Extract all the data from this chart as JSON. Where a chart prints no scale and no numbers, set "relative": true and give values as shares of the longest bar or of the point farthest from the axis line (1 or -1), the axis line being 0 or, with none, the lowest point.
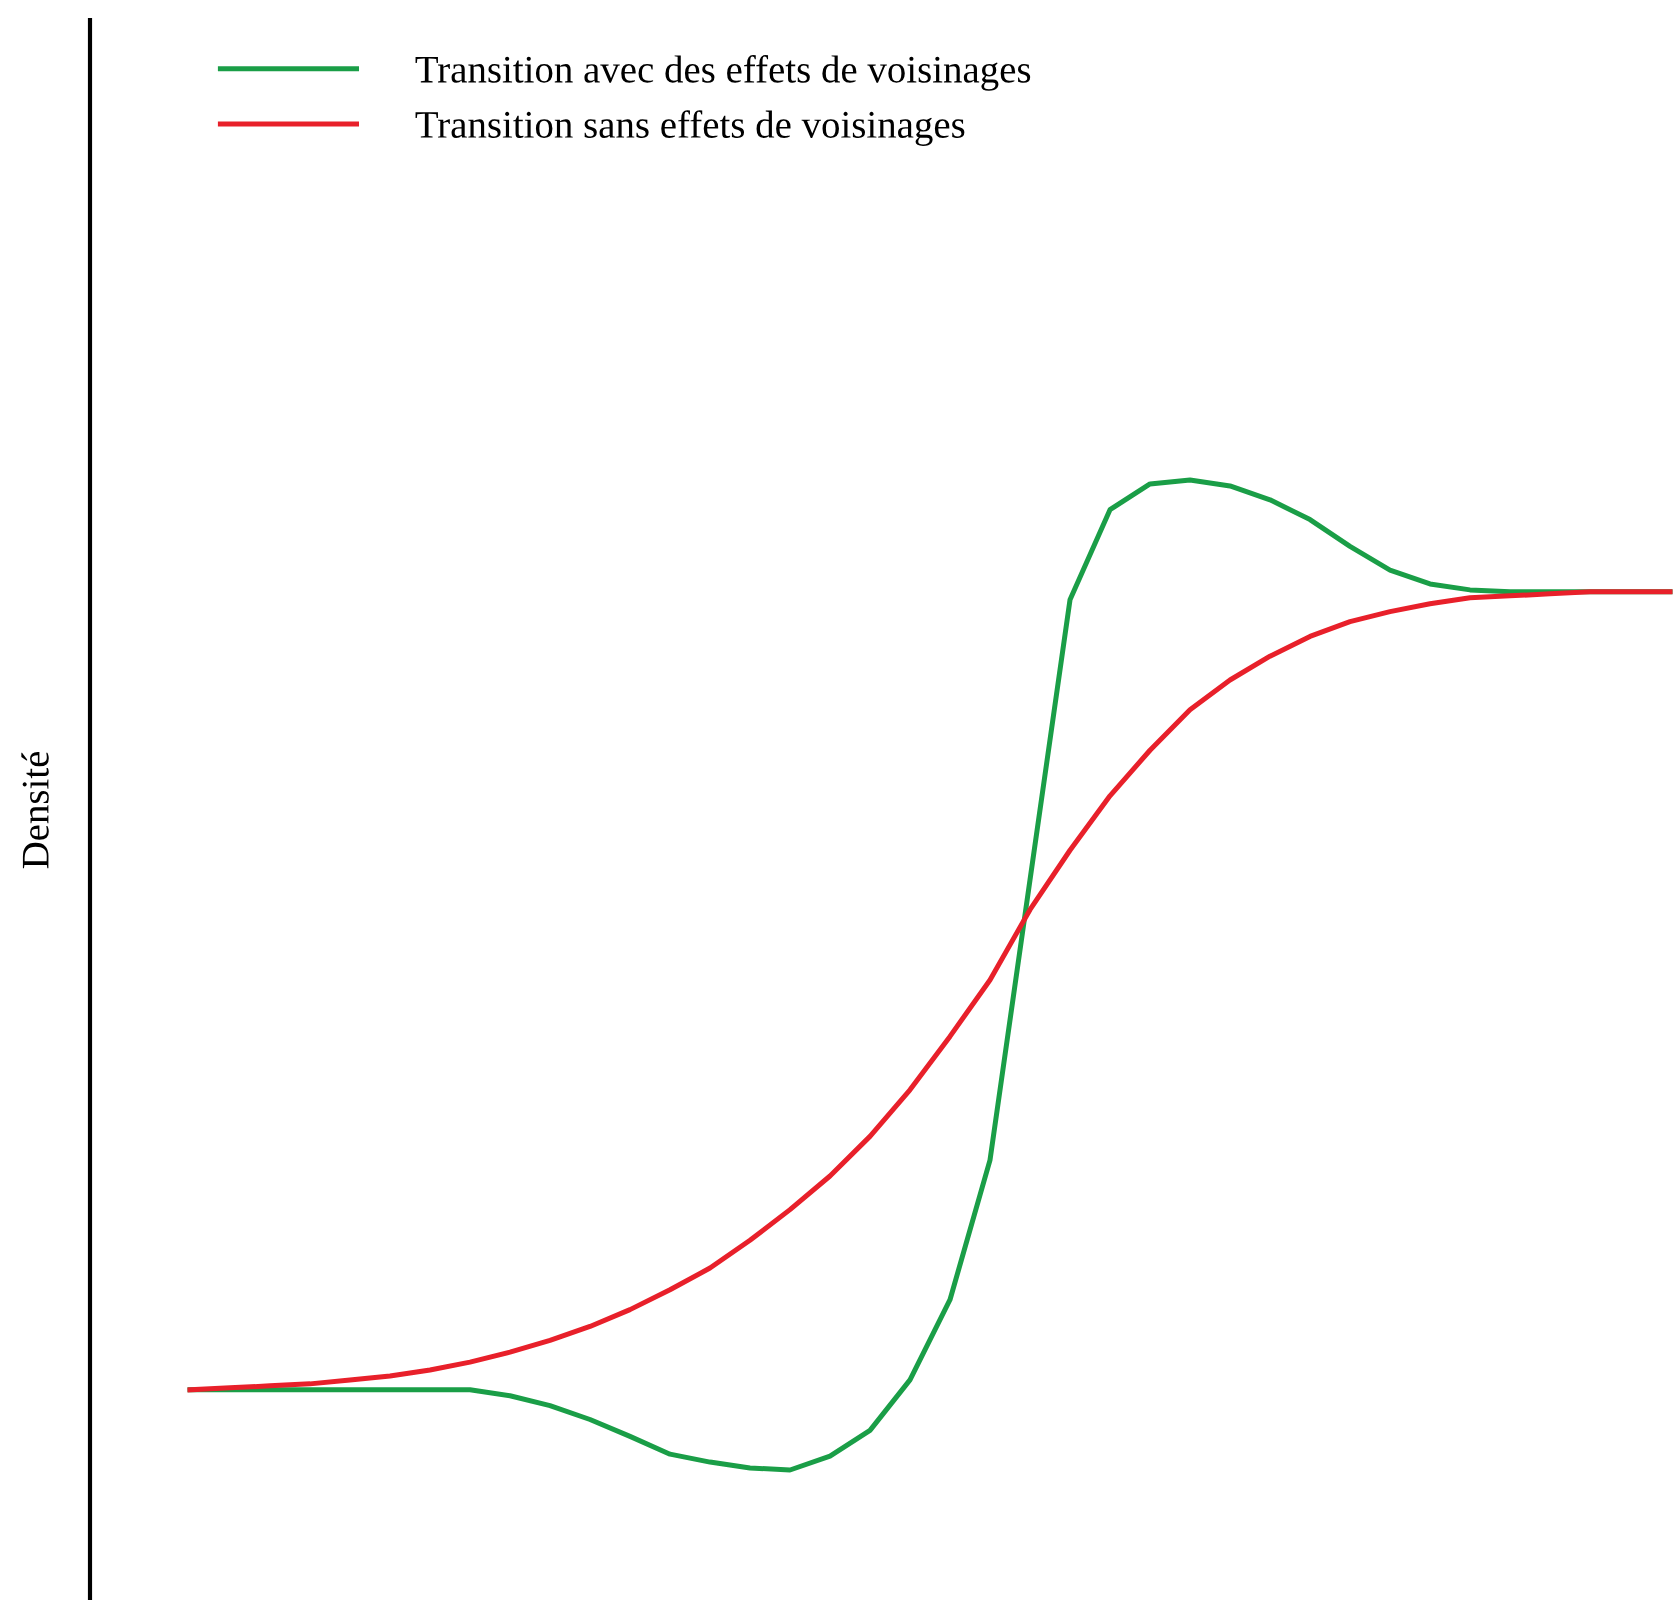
{
  "chart_data": {
    "type": "line",
    "relative": true,
    "ylabel": "Densité",
    "legend": "top left",
    "marker": "none",
    "line_style": "solid",
    "categories": [
      null,
      null,
      null,
      null,
      null,
      null,
      null,
      null,
      null,
      null,
      null,
      null,
      null,
      null,
      null,
      null,
      null,
      null,
      null,
      null,
      null,
      null,
      null,
      null,
      null,
      null,
      null,
      null,
      null,
      null,
      null,
      null,
      null,
      null,
      null,
      null,
      null,
      null
    ],
    "series": [
      {
        "name": "Transition avec des effets de voisinages",
        "color": "#1a9e47",
        "values": [
          0.081,
          0.081,
          0.081,
          0.081,
          0.081,
          0.081,
          0.081,
          0.081,
          0.075,
          0.065,
          0.051,
          0.034,
          0.016,
          0.008,
          0.002,
          0.0,
          0.014,
          0.04,
          0.091,
          0.172,
          0.313,
          0.596,
          0.879,
          0.97,
          0.996,
          1.0,
          0.994,
          0.98,
          0.96,
          0.933,
          0.909,
          0.895,
          0.889,
          0.887,
          0.887,
          0.887,
          0.887,
          0.887
        ]
      },
      {
        "name": "Transition sans effets de voisinages",
        "color": "#e8202a",
        "values": [
          0.081,
          0.083,
          0.085,
          0.087,
          0.091,
          0.095,
          0.101,
          0.109,
          0.119,
          0.131,
          0.145,
          0.162,
          0.182,
          0.204,
          0.232,
          0.263,
          0.297,
          0.337,
          0.384,
          0.438,
          0.495,
          0.566,
          0.626,
          0.681,
          0.727,
          0.768,
          0.798,
          0.822,
          0.842,
          0.857,
          0.867,
          0.875,
          0.881,
          0.883,
          0.885,
          0.887,
          0.887,
          0.887
        ]
      }
    ]
  }
}
